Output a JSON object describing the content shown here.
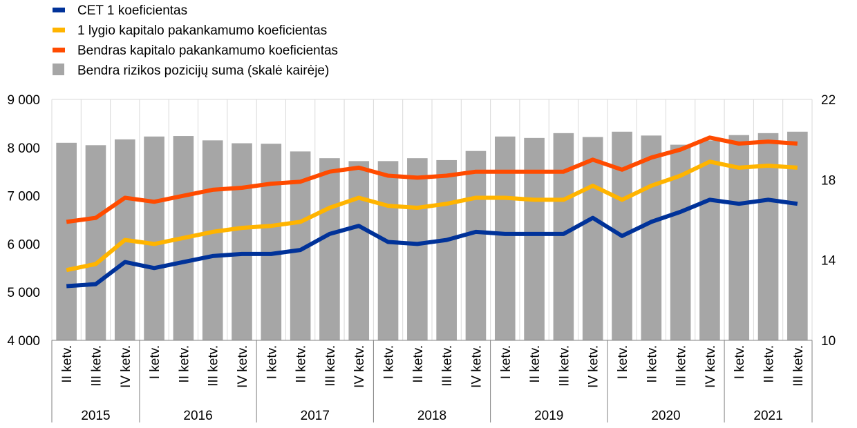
{
  "chart_data": {
    "type": "bar+line",
    "legend": [
      {
        "label": "CET 1 koeficientas",
        "color": "#003299",
        "kind": "line"
      },
      {
        "label": "1 lygio kapitalo pakankamumo koeficientas",
        "color": "#FFB400",
        "kind": "line"
      },
      {
        "label": "Bendras kapitalo pakankamumo koeficientas",
        "color": "#FF4B00",
        "kind": "line"
      },
      {
        "label": "Bendra rizikos pozicijų suma (skalė kairėje)",
        "color": "#A6A6A6",
        "kind": "bar"
      }
    ],
    "legend_position": "top-left",
    "categories": [
      "II ketv.",
      "III ketv.",
      "IV ketv.",
      "I ketv.",
      "II ketv.",
      "III ketv.",
      "IV ketv.",
      "I ketv.",
      "II ketv.",
      "III ketv.",
      "IV ketv.",
      "I ketv.",
      "II ketv.",
      "III ketv.",
      "IV ketv.",
      "I ketv.",
      "II ketv.",
      "III ketv.",
      "IV ketv.",
      "I ketv.",
      "II ketv.",
      "III ketv.",
      "IV ketv.",
      "I ketv.",
      "II ketv.",
      "III ketv."
    ],
    "year_groups": [
      {
        "label": "2015",
        "count": 3
      },
      {
        "label": "2016",
        "count": 4
      },
      {
        "label": "2017",
        "count": 4
      },
      {
        "label": "2018",
        "count": 4
      },
      {
        "label": "2019",
        "count": 4
      },
      {
        "label": "2020",
        "count": 4
      },
      {
        "label": "2021",
        "count": 3
      }
    ],
    "y_left": {
      "min": 4000,
      "max": 9000,
      "ticks": [
        4000,
        5000,
        6000,
        7000,
        8000,
        9000
      ],
      "tick_labels": [
        "4 000",
        "5 000",
        "6 000",
        "7 000",
        "8 000",
        "9 000"
      ]
    },
    "y_right": {
      "min": 10,
      "max": 22,
      "ticks": [
        10,
        14,
        18,
        22
      ],
      "tick_labels": [
        "10",
        "14",
        "18",
        "22"
      ]
    },
    "grid": "vertical",
    "bars": {
      "name": "Bendra rizikos pozicijų suma (skalė kairėje)",
      "axis": "left",
      "values": [
        8100,
        8050,
        8170,
        8230,
        8240,
        8150,
        8090,
        8080,
        7920,
        7780,
        7720,
        7720,
        7780,
        7740,
        7930,
        8230,
        8200,
        8300,
        8220,
        8330,
        8250,
        8060,
        8150,
        8260,
        8300,
        8330
      ]
    },
    "series": [
      {
        "name": "CET 1 koeficientas",
        "axis": "right",
        "color": "#003299",
        "values": [
          12.7,
          12.8,
          13.9,
          13.6,
          13.9,
          14.2,
          14.3,
          14.3,
          14.5,
          15.3,
          15.7,
          14.9,
          14.8,
          15.0,
          15.4,
          15.3,
          15.3,
          15.3,
          16.1,
          15.2,
          15.9,
          16.4,
          17.0,
          16.8,
          17.0,
          16.8
        ]
      },
      {
        "name": "1 lygio kapitalo pakankamumo koeficientas",
        "axis": "right",
        "color": "#FFB400",
        "values": [
          13.5,
          13.8,
          15.0,
          14.8,
          15.1,
          15.4,
          15.6,
          15.7,
          15.9,
          16.6,
          17.1,
          16.7,
          16.6,
          16.8,
          17.1,
          17.1,
          17.0,
          17.0,
          17.7,
          17.0,
          17.7,
          18.2,
          18.9,
          18.6,
          18.7,
          18.6
        ]
      },
      {
        "name": "Bendras kapitalo pakankamumo koeficientas",
        "axis": "right",
        "color": "#FF4B00",
        "values": [
          15.9,
          16.1,
          17.1,
          16.9,
          17.2,
          17.5,
          17.6,
          17.8,
          17.9,
          18.4,
          18.6,
          18.2,
          18.1,
          18.2,
          18.4,
          18.4,
          18.4,
          18.4,
          19.0,
          18.5,
          19.1,
          19.5,
          20.1,
          19.8,
          19.9,
          19.8
        ]
      }
    ]
  }
}
